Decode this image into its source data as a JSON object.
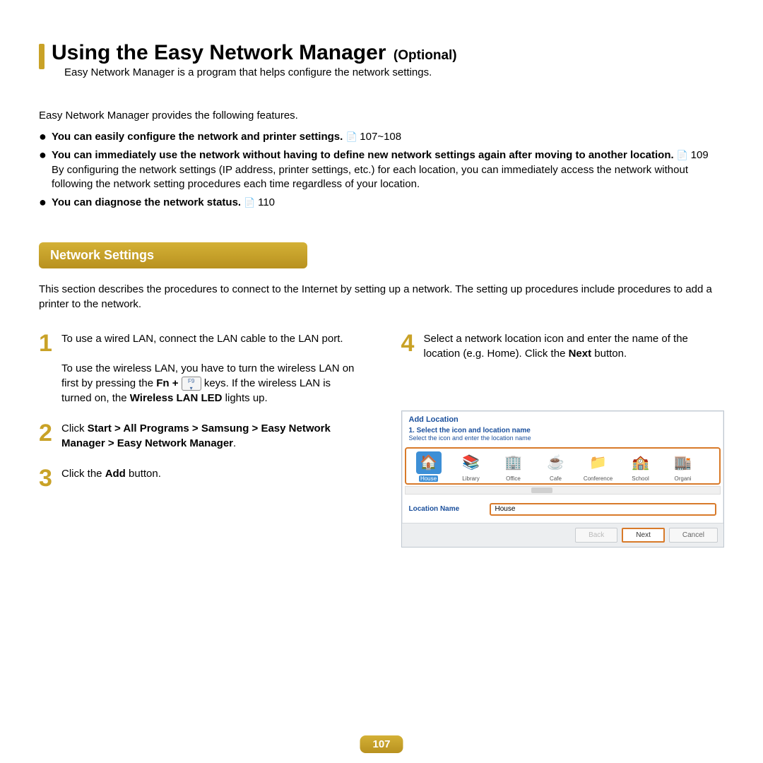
{
  "header": {
    "title": "Using the Easy Network Manager",
    "suffix": "(Optional)",
    "tagline": "Easy Network Manager is a program that helps configure the network settings."
  },
  "features_intro": "Easy Network Manager provides the following features.",
  "features": [
    {
      "bold": "You can easily configure the network and printer settings.",
      "ref": "107~108",
      "extra": ""
    },
    {
      "bold": "You can immediately use the network without having to define new network settings again after moving to another location.",
      "ref": "109",
      "extra": "By configuring the network settings (IP address, printer settings, etc.) for each location, you can immediately access the network without following the network setting procedures each time regardless of your location."
    },
    {
      "bold": "You can diagnose the network status.",
      "ref": "110",
      "extra": ""
    }
  ],
  "section": {
    "chip": "Network Settings",
    "desc": "This section describes the procedures to connect to the Internet by setting up a network. The setting up procedures include procedures to add a printer to the network."
  },
  "steps_left": [
    {
      "num": "1",
      "p1": "To use a wired LAN, connect the LAN cable to the LAN port.",
      "p2a": "To use the wireless LAN, you have to turn the wireless LAN on first by pressing the ",
      "p2b_bold": "Fn + ",
      "p2c": " keys. If the wireless LAN is turned on, the ",
      "p2d_bold": "Wireless LAN LED",
      "p2e": " lights up."
    },
    {
      "num": "2",
      "p1a": "Click ",
      "p1b_bold": "Start > All Programs > Samsung > Easy Network Manager > Easy Network Manager",
      "p1c": "."
    },
    {
      "num": "3",
      "p1a": "Click the ",
      "p1b_bold": "Add",
      "p1c": " button."
    }
  ],
  "steps_right": [
    {
      "num": "4",
      "p1a": "Select a network location icon and enter the name of the location (e.g. Home). Click the ",
      "p1b_bold": "Next",
      "p1c": " button."
    }
  ],
  "dialog": {
    "title": "Add Location",
    "subtitle": "1. Select the icon and location name",
    "hint": "Select the icon and enter the location name",
    "locations": [
      {
        "label": "House",
        "emoji": "🏠",
        "bg": "#3d8fd6",
        "selected": true
      },
      {
        "label": "Library",
        "emoji": "📚",
        "bg": "transparent"
      },
      {
        "label": "Office",
        "emoji": "🏢",
        "bg": "transparent"
      },
      {
        "label": "Cafe",
        "emoji": "☕",
        "bg": "transparent"
      },
      {
        "label": "Conference",
        "emoji": "📁",
        "bg": "transparent"
      },
      {
        "label": "School",
        "emoji": "🏫",
        "bg": "transparent"
      },
      {
        "label": "Organi",
        "emoji": "🏬",
        "bg": "transparent"
      }
    ],
    "field_label": "Location Name",
    "field_value": "House",
    "buttons": {
      "back": "Back",
      "next": "Next",
      "cancel": "Cancel"
    }
  },
  "page_number": "107",
  "colors": {
    "gold": "#c9a227",
    "link": "#1a4f9c",
    "orange": "#d87a2a"
  },
  "key_label": "F9\n⇅"
}
